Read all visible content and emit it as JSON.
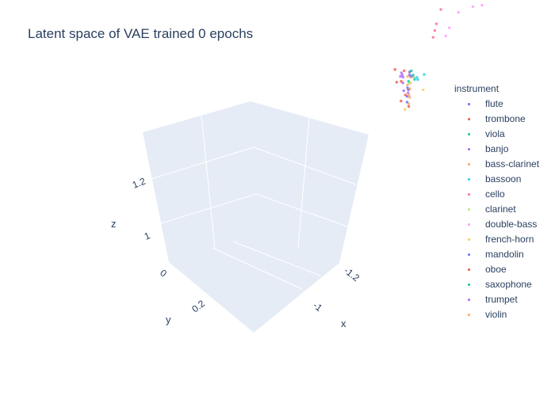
{
  "chart_data": {
    "type": "scatter",
    "title": "Latent space of VAE trained 0 epochs",
    "axes": {
      "x": {
        "label": "x",
        "ticks": [
          "-1.2",
          "-1"
        ]
      },
      "y": {
        "label": "y",
        "ticks": [
          "0",
          "0.2"
        ]
      },
      "z": {
        "label": "z",
        "ticks": [
          "1",
          "1.2"
        ]
      }
    },
    "grid": true,
    "legend": {
      "title": "instrument",
      "placement": "right"
    },
    "series": [
      {
        "name": "flute",
        "color": "#636efa",
        "points": [
          [
            -1.06,
            0.17,
            1.02
          ],
          [
            -1.04,
            0.14,
            1.05
          ],
          [
            -1.08,
            0.2,
            1.0
          ],
          [
            -1.05,
            0.12,
            1.07
          ],
          [
            -1.02,
            0.1,
            1.09
          ]
        ]
      },
      {
        "name": "trombone",
        "color": "#ef553b",
        "points": [
          [
            -1.0,
            0.1,
            1.12
          ],
          [
            -0.98,
            0.12,
            1.15
          ],
          [
            -1.03,
            0.16,
            1.02
          ],
          [
            -1.1,
            0.22,
            0.98
          ],
          [
            -1.0,
            0.14,
            1.1
          ]
        ]
      },
      {
        "name": "viola",
        "color": "#00cc96",
        "points": [
          [
            -1.04,
            0.11,
            1.08
          ],
          [
            -1.06,
            0.13,
            1.06
          ],
          [
            -1.02,
            0.09,
            1.1
          ]
        ]
      },
      {
        "name": "banjo",
        "color": "#ab63fa",
        "points": [
          [
            -1.01,
            0.12,
            1.1
          ],
          [
            -1.03,
            0.15,
            1.08
          ],
          [
            -0.99,
            0.1,
            1.12
          ],
          [
            -1.07,
            0.18,
            1.03
          ],
          [
            -1.0,
            0.11,
            1.11
          ]
        ]
      },
      {
        "name": "bass-clarinet",
        "color": "#ffa15a",
        "points": [
          [
            -1.05,
            0.14,
            1.06
          ],
          [
            -1.08,
            0.19,
            1.02
          ],
          [
            -1.03,
            0.11,
            1.08
          ],
          [
            -1.1,
            0.22,
            0.99
          ],
          [
            -1.02,
            0.1,
            1.1
          ],
          [
            -1.06,
            0.16,
            1.04
          ]
        ]
      },
      {
        "name": "bassoon",
        "color": "#19d3f3",
        "points": [
          [
            -1.02,
            0.06,
            1.06
          ],
          [
            -1.04,
            0.05,
            1.05
          ],
          [
            -1.03,
            0.07,
            1.05
          ]
        ]
      },
      {
        "name": "cello",
        "color": "#ff6692",
        "points": [
          [
            -1.12,
            0.1,
            1.2
          ],
          [
            -1.1,
            0.08,
            1.18
          ],
          [
            -1.15,
            0.12,
            1.24
          ],
          [
            -1.08,
            0.06,
            1.16
          ]
        ]
      },
      {
        "name": "clarinet",
        "color": "#b6e880",
        "points": [
          [
            -1.05,
            0.12,
            1.07
          ],
          [
            -1.04,
            0.13,
            1.06
          ]
        ]
      },
      {
        "name": "double-bass",
        "color": "#ff97ff",
        "points": [
          [
            -1.16,
            0.04,
            1.18
          ],
          [
            -1.2,
            0.02,
            1.16
          ],
          [
            -1.14,
            0.06,
            1.15
          ],
          [
            -1.22,
            0.0,
            1.14
          ],
          [
            -1.12,
            0.05,
            1.13
          ]
        ]
      },
      {
        "name": "french-horn",
        "color": "#fecb52",
        "points": [
          [
            -1.14,
            0.2,
            1.0
          ],
          [
            -1.1,
            0.24,
            0.98
          ]
        ]
      },
      {
        "name": "mandolin",
        "color": "#636efa",
        "points": [
          [
            -1.02,
            0.09,
            1.08
          ],
          [
            -1.0,
            0.07,
            1.1
          ],
          [
            -1.05,
            0.15,
            1.04
          ]
        ]
      },
      {
        "name": "oboe",
        "color": "#ef553b",
        "points": [
          [
            -1.01,
            0.13,
            1.09
          ],
          [
            -1.06,
            0.18,
            1.03
          ]
        ]
      },
      {
        "name": "saxophone",
        "color": "#00cc96",
        "points": [
          [
            -1.03,
            0.12,
            1.07
          ]
        ]
      },
      {
        "name": "trumpet",
        "color": "#ab63fa",
        "points": [
          [
            -1.0,
            0.12,
            1.11
          ],
          [
            -1.04,
            0.16,
            1.05
          ]
        ]
      },
      {
        "name": "violin",
        "color": "#ffa15a",
        "points": [
          [
            -1.02,
            0.11,
            1.09
          ],
          [
            -1.07,
            0.17,
            1.04
          ],
          [
            -1.09,
            0.2,
            1.01
          ],
          [
            -1.04,
            0.14,
            1.06
          ]
        ]
      }
    ]
  }
}
